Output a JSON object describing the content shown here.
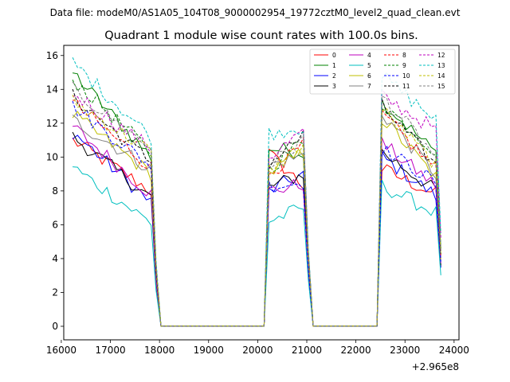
{
  "suptitle": "Data file: modeM0/AS1A05_104T08_9000002954_19772cztM0_level2_quad_clean.evt",
  "chart_data": {
    "type": "line",
    "title": "Quadrant 1 module wise count rates with 100.0s bins.",
    "xlabel": "",
    "ylabel": "",
    "x_offset_label": "+2.965e8",
    "xlim": [
      16050,
      24100
    ],
    "ylim": [
      -0.8,
      16.6
    ],
    "xticks": [
      16000,
      17000,
      18000,
      19000,
      20000,
      21000,
      22000,
      23000,
      24000
    ],
    "yticks": [
      0,
      2,
      4,
      6,
      8,
      10,
      12,
      14,
      16
    ],
    "x_start": 16230,
    "x_step": 100,
    "legend_position": "top-right",
    "legend_columns": 4,
    "active_segments": [
      {
        "start": 16230,
        "end": 17830
      },
      {
        "start": 20230,
        "end": 20930
      },
      {
        "start": 22530,
        "end": 23630
      }
    ],
    "series": [
      {
        "name": "0",
        "color": "#ff0000",
        "dash": "solid",
        "levels": [
          11.0,
          8.0,
          10.2,
          8.3,
          9.3,
          7.8
        ]
      },
      {
        "name": "1",
        "color": "#008000",
        "dash": "solid",
        "levels": [
          15.0,
          10.0,
          10.5,
          10.3,
          13.3,
          10.2
        ]
      },
      {
        "name": "2",
        "color": "#0000ff",
        "dash": "solid",
        "levels": [
          11.5,
          7.3,
          8.0,
          9.0,
          10.0,
          7.7
        ]
      },
      {
        "name": "3",
        "color": "#000000",
        "dash": "solid",
        "levels": [
          11.2,
          7.6,
          8.2,
          9.0,
          10.3,
          8.0
        ]
      },
      {
        "name": "4",
        "color": "#bf00bf",
        "dash": "solid",
        "levels": [
          11.8,
          7.8,
          8.0,
          8.4,
          10.8,
          8.3
        ]
      },
      {
        "name": "5",
        "color": "#00bfbf",
        "dash": "solid",
        "levels": [
          9.4,
          6.1,
          6.2,
          7.0,
          8.3,
          6.7
        ]
      },
      {
        "name": "6",
        "color": "#bfbf00",
        "dash": "solid",
        "levels": [
          12.5,
          9.0,
          9.0,
          10.3,
          12.3,
          8.8
        ]
      },
      {
        "name": "7",
        "color": "#808080",
        "dash": "solid",
        "levels": [
          12.2,
          9.3,
          9.5,
          10.1,
          12.6,
          9.0
        ]
      },
      {
        "name": "8",
        "color": "#ff0000",
        "dash": "dashed",
        "levels": [
          13.2,
          9.4,
          9.0,
          10.7,
          12.5,
          9.3
        ]
      },
      {
        "name": "9",
        "color": "#008000",
        "dash": "dashed",
        "levels": [
          14.6,
          10.3,
          9.3,
          11.0,
          13.2,
          10.3
        ]
      },
      {
        "name": "10",
        "color": "#0000ff",
        "dash": "dashed",
        "levels": [
          13.0,
          9.5,
          8.3,
          8.5,
          10.5,
          8.5
        ]
      },
      {
        "name": "11",
        "color": "#000000",
        "dash": "dashed",
        "levels": [
          13.6,
          9.7,
          9.6,
          11.3,
          13.0,
          9.5
        ]
      },
      {
        "name": "12",
        "color": "#bf00bf",
        "dash": "dashed",
        "levels": [
          13.8,
          10.5,
          10.0,
          11.5,
          13.6,
          11.6
        ]
      },
      {
        "name": "13",
        "color": "#00bfbf",
        "dash": "dashed",
        "levels": [
          15.6,
          11.2,
          11.4,
          11.8,
          14.8,
          12.2
        ]
      },
      {
        "name": "14",
        "color": "#bfbf00",
        "dash": "dashed",
        "levels": [
          13.3,
          10.3,
          9.2,
          10.7,
          12.8,
          9.5
        ]
      },
      {
        "name": "15",
        "color": "#808080",
        "dash": "dashed",
        "levels": [
          14.0,
          10.5,
          9.5,
          11.0,
          13.6,
          10.0
        ]
      }
    ]
  }
}
